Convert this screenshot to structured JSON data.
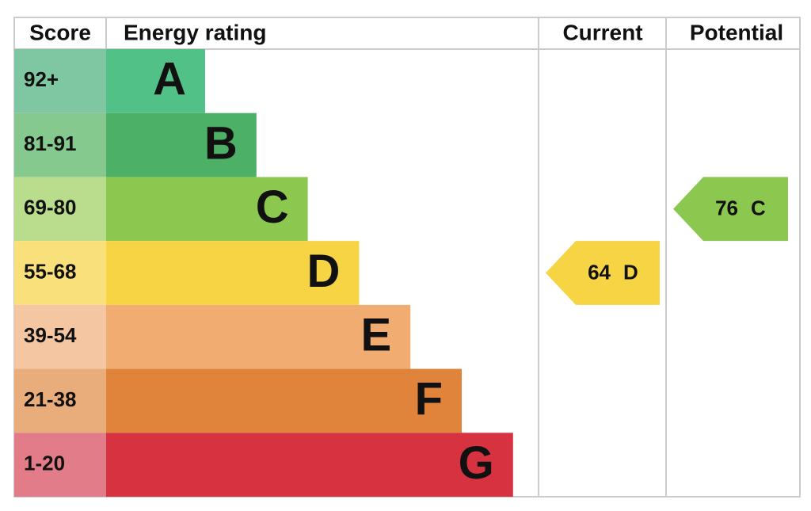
{
  "header": {
    "score": "Score",
    "energy_rating": "Energy rating",
    "current": "Current",
    "potential": "Potential"
  },
  "bands": [
    {
      "score": "92+",
      "letter": "A",
      "color": "#52c187",
      "light": "#7fc7a2"
    },
    {
      "score": "81-91",
      "letter": "B",
      "color": "#4cb067",
      "light": "#86c98f"
    },
    {
      "score": "69-80",
      "letter": "C",
      "color": "#8cc84f",
      "light": "#badc8d"
    },
    {
      "score": "55-68",
      "letter": "D",
      "color": "#f6d444",
      "light": "#fae07b"
    },
    {
      "score": "39-54",
      "letter": "E",
      "color": "#f0ac71",
      "light": "#f4c7a2"
    },
    {
      "score": "21-38",
      "letter": "F",
      "color": "#e0843b",
      "light": "#e9ad7b"
    },
    {
      "score": "1-20",
      "letter": "G",
      "color": "#d6323f",
      "light": "#e27c88"
    }
  ],
  "current": {
    "value": 64,
    "band": "D"
  },
  "potential": {
    "value": 76,
    "band": "C"
  }
}
